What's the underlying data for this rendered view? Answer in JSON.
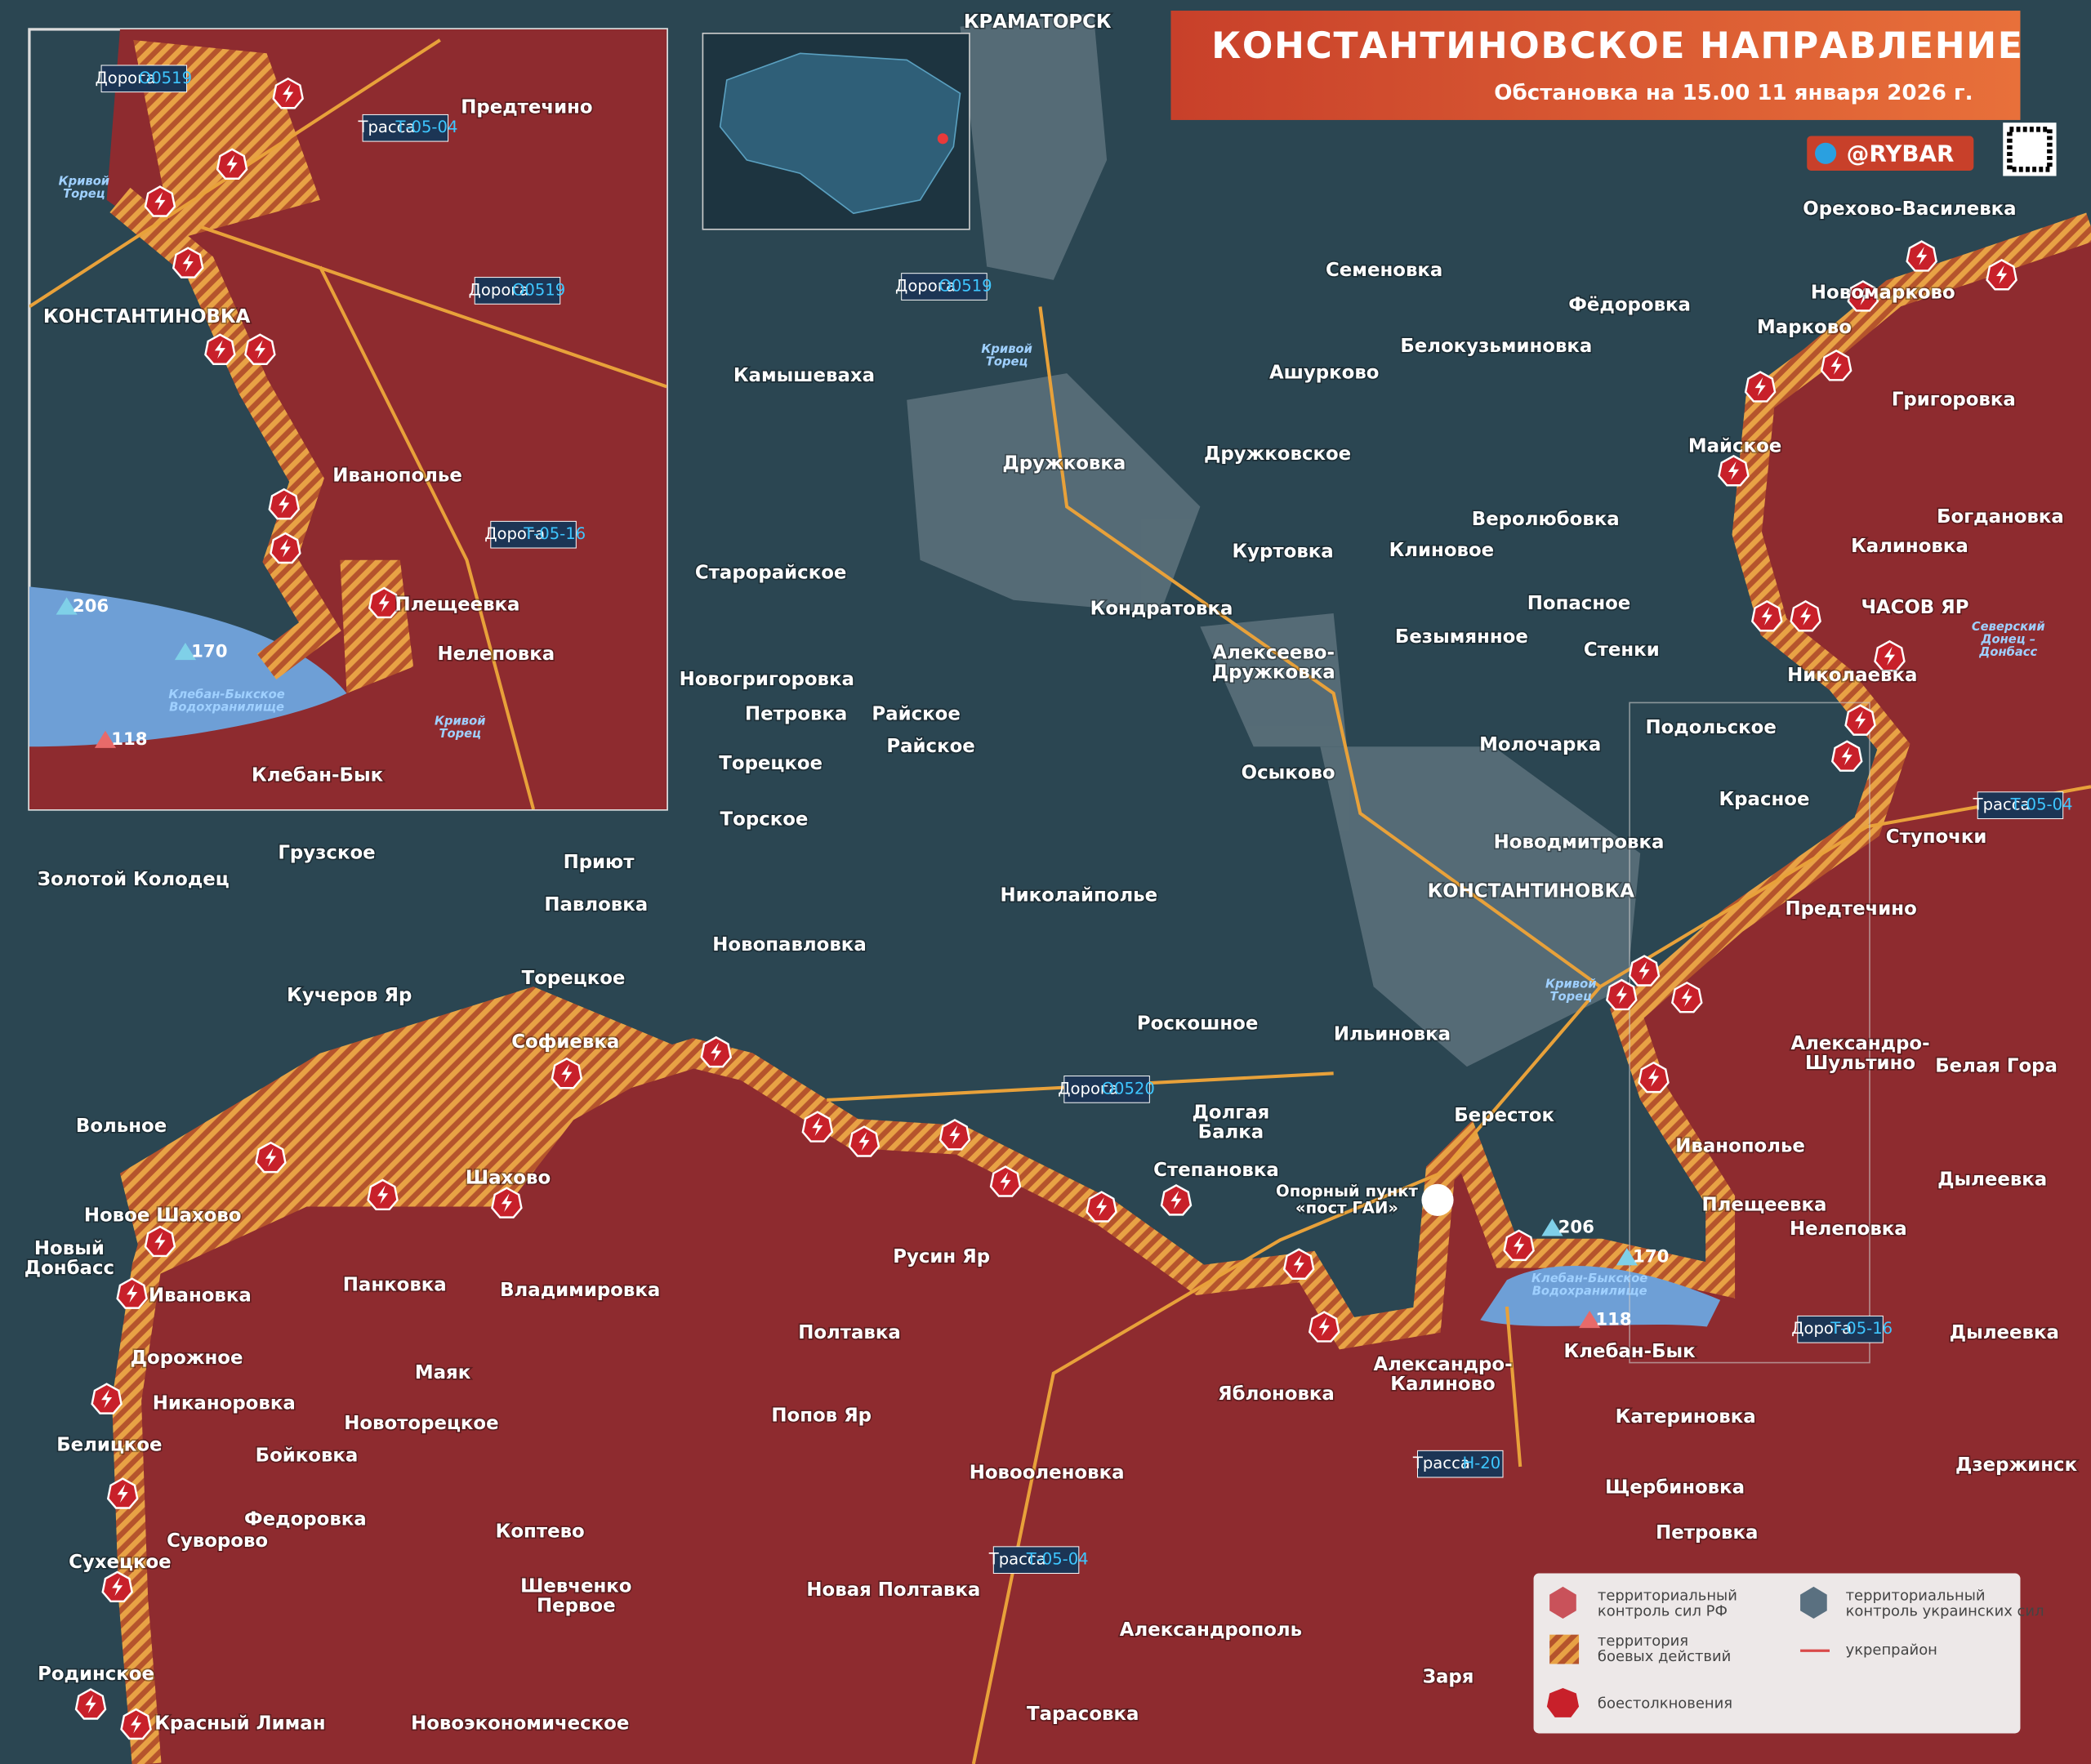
{
  "header": {
    "title": "КОНСТАНТИНОВСКОЕ НАПРАВЛЕНИЕ",
    "subtitle": "Обстановка на 15.00 11 января 2026 г.",
    "brand": "@RYBAR"
  },
  "places": [
    "КРАМАТОРСК",
    "Семеновка",
    "Фёдоровка",
    "Орехово-Василевка",
    "Новомарково",
    "Марково",
    "Белокузьминовка",
    "Ашурково",
    "Камышеваха",
    "Григоровка",
    "Дружковка",
    "Дружковское",
    "Майское",
    "Веролюбовка",
    "Богдановка",
    "Клиновое",
    "Куртовка",
    "Калиновка",
    "Старорайское",
    "Кондратовка",
    "Попасное",
    "ЧАСОВ ЯР",
    "Безымянное",
    "Стенки",
    "Алексеево-\nДружковка",
    "Новогригоровка",
    "Николаевка",
    "Петровка",
    "Райское",
    "Райское",
    "Подольское",
    "Торецкое",
    "Осыково",
    "Молочарка",
    "Торское",
    "Красное",
    "Ступочки",
    "Новодмитровка",
    "Грузское",
    "Приют",
    "Золотой Колодец",
    "Павловка",
    "Николайполье",
    "КОНСТАНТИНОВКА",
    "Предтечино",
    "Новопавловка",
    "Торецкое",
    "Кучеров Яр",
    "Роскошное",
    "Ильиновка",
    "Софиевка",
    "Александро-\nШультино",
    "Белая Гора",
    "Вольное",
    "Долгая\nБалка",
    "Шахово",
    "Бересток",
    "Иванополье",
    "Дылеевка",
    "Степановка",
    "Плещеевка",
    "Новое Шахово",
    "Нелеповка",
    "Новый\nДонбасс",
    "Русин Яр",
    "Панковка",
    "Владимировка",
    "Ивановка",
    "Клебан-Бык",
    "Дылеевка",
    "Полтавка",
    "Дорожное",
    "Маяк",
    "Александро-\nКалиново",
    "Никаноровка",
    "Яблоновка",
    "Катериновка",
    "Попов Яр",
    "Новоторецкое",
    "Белицкое",
    "Бойковка",
    "Дзержинск",
    "Новооленовка",
    "Федоровка",
    "Щербиновка",
    "Коптево",
    "Суворово",
    "Петровка",
    "Сухецкое",
    "Шевченко\nПервое",
    "Новая Полтавка",
    "Александрополь",
    "Родинское",
    "Заря",
    "Красный Лиман",
    "Новоэкономическое",
    "Тарасовка"
  ],
  "roads": [
    {
      "kind": "Дорога",
      "code": "O0519"
    },
    {
      "kind": "Дорога",
      "code": "O0520"
    },
    {
      "kind": "Трасса",
      "code": "Т-05-04"
    },
    {
      "kind": "Трасса",
      "code": "Н-20"
    },
    {
      "kind": "Трасса",
      "code": "Т-05-04"
    },
    {
      "kind": "Дорога",
      "code": "Т-05-16"
    }
  ],
  "rivers": [
    "Кривой\nТорец",
    "Кривой\nТорец",
    "Северский\nДонец –\nДонбасс",
    "Клебан-Быкское\nВодохранилище"
  ],
  "heights": [
    "206",
    "170",
    "118"
  ],
  "stronghold": "Опорный пункт\n«пост ГАИ»",
  "inset": {
    "places": [
      "Предтечино",
      "КОНСТАНТИНОВКА",
      "Иванополье",
      "Плещеевка",
      "Нелеповка",
      "Клебан-Бык"
    ],
    "roads": [
      {
        "kind": "Дорога",
        "code": "O0519"
      },
      {
        "kind": "Трасса",
        "code": "Т-05-04"
      },
      {
        "kind": "Дорога",
        "code": "O0519"
      },
      {
        "kind": "Дорога",
        "code": "Т-05-16"
      }
    ],
    "rivers": [
      "Кривой\nТорец",
      "Кривой\nТорец",
      "Клебан-Быкское\nВодохранилище"
    ],
    "heights": [
      "206",
      "170",
      "118"
    ]
  },
  "legend": {
    "ru": "территориальный\nконтроль сил РФ",
    "ua": "территориальный\nконтроль украинских сил",
    "combat": "территория\nбоевых действий",
    "fort": "укрепрайон",
    "clash": "боестолкновения"
  }
}
